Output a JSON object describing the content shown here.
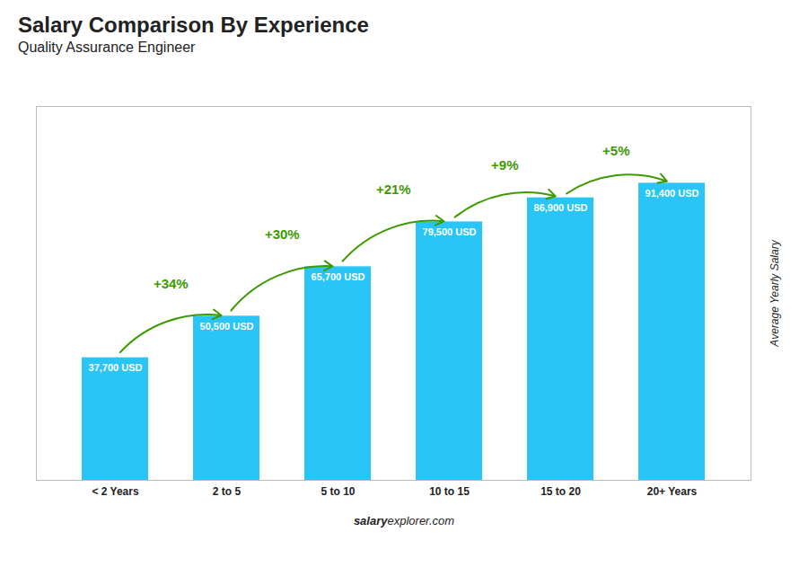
{
  "chart_data": {
    "type": "bar",
    "title": "Salary Comparison By Experience",
    "subtitle": "Quality Assurance Engineer",
    "categories": [
      "< 2 Years",
      "2 to 5",
      "5 to 10",
      "10 to 15",
      "15 to 20",
      "20+ Years"
    ],
    "values": [
      37700,
      50500,
      65700,
      79500,
      86900,
      91400
    ],
    "value_labels": [
      "37,700 USD",
      "50,500 USD",
      "65,700 USD",
      "79,500 USD",
      "86,900 USD",
      "91,400 USD"
    ],
    "data_labels": true,
    "color": "#29C5F6",
    "ylabel": "Average Yearly Salary",
    "ylim": [
      0,
      115000
    ],
    "tick_labels": "x",
    "grid": false,
    "annotations": [
      "+34%",
      "+30%",
      "+21%",
      "+9%",
      "+5%"
    ],
    "footer": [
      "salary",
      "explorer.com"
    ]
  }
}
